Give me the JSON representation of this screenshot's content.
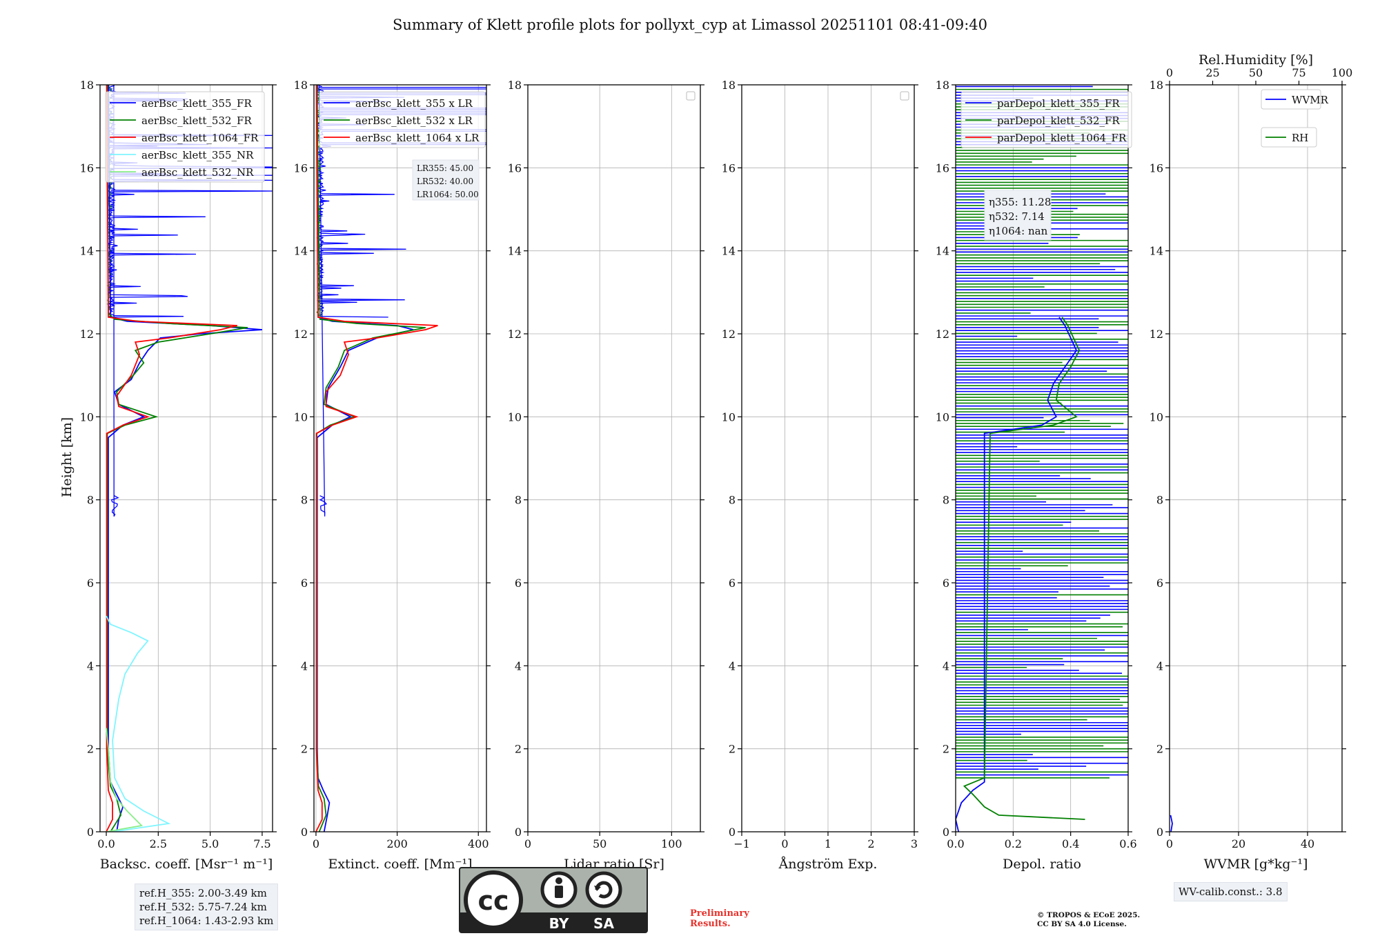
{
  "title": "Summary of Klett profile plots for pollyxt_cyp at Limassol 20251101 08:41-09:40",
  "y_axis_label": "Height [km]",
  "y_ticks": [
    "0",
    "2",
    "4",
    "6",
    "8",
    "10",
    "12",
    "14",
    "16",
    "18"
  ],
  "colors": {
    "blue": "#0000ff",
    "green": "#008000",
    "red": "#ff0000",
    "cyan": "#7ff5ff",
    "lightgreen": "#88ee88",
    "grid": "#b0b0b0"
  },
  "chart_data": [
    {
      "type": "line",
      "panel": "backscatter",
      "xlabel": "Backsc. coeff. [Msr⁻¹ m⁻¹]",
      "xlim": [
        -0.3,
        8.0
      ],
      "ylim": [
        0,
        18
      ],
      "x_ticks": [
        0,
        2.5,
        5.0,
        7.5
      ],
      "x_tick_labels": [
        "0.0",
        "2.5",
        "5.0",
        "7.5"
      ],
      "legend": [
        "aerBsc_klett_355_FR",
        "aerBsc_klett_532_FR",
        "aerBsc_klett_1064_FR",
        "aerBsc_klett_355_NR",
        "aerBsc_klett_532_NR"
      ],
      "series": [
        {
          "name": "aerBsc_klett_355_FR",
          "color": "blue",
          "points": [
            [
              0.5,
              0
            ],
            [
              0.6,
              0.3
            ],
            [
              0.8,
              0.6
            ],
            [
              0.5,
              0.9
            ],
            [
              0.2,
              1.2
            ],
            [
              0.1,
              2
            ],
            [
              0.1,
              6
            ],
            [
              0.1,
              9.5
            ],
            [
              0.8,
              9.8
            ],
            [
              1.8,
              10.0
            ],
            [
              0.6,
              10.3
            ],
            [
              0.4,
              10.6
            ],
            [
              1.2,
              10.9
            ],
            [
              1.6,
              11.3
            ],
            [
              2.0,
              11.6
            ],
            [
              2.6,
              11.9
            ],
            [
              4.5,
              12.0
            ],
            [
              7.5,
              12.1
            ],
            [
              5.0,
              12.2
            ],
            [
              1.0,
              12.3
            ],
            [
              0.2,
              12.4
            ],
            [
              0.1,
              18
            ]
          ]
        },
        {
          "name": "aerBsc_klett_532_FR",
          "color": "green",
          "points": [
            [
              0.2,
              0
            ],
            [
              0.7,
              0.4
            ],
            [
              0.5,
              0.8
            ],
            [
              0.2,
              1.1
            ],
            [
              0.05,
              2
            ],
            [
              0.05,
              9.6
            ],
            [
              0.9,
              9.8
            ],
            [
              2.4,
              10.0
            ],
            [
              0.6,
              10.3
            ],
            [
              0.5,
              10.6
            ],
            [
              1.3,
              11.0
            ],
            [
              1.8,
              11.3
            ],
            [
              1.4,
              11.6
            ],
            [
              2.5,
              11.8
            ],
            [
              5.0,
              12.0
            ],
            [
              6.8,
              12.15
            ],
            [
              3.0,
              12.25
            ],
            [
              0.4,
              12.35
            ],
            [
              0.1,
              12.5
            ],
            [
              0.05,
              18
            ]
          ]
        },
        {
          "name": "aerBsc_klett_1064_FR",
          "color": "red",
          "points": [
            [
              0.0,
              0
            ],
            [
              0.3,
              0.3
            ],
            [
              0.3,
              0.7
            ],
            [
              0.1,
              1.0
            ],
            [
              0.02,
              2
            ],
            [
              0.02,
              9.6
            ],
            [
              0.8,
              9.8
            ],
            [
              2.0,
              10.0
            ],
            [
              0.6,
              10.25
            ],
            [
              0.5,
              10.5
            ],
            [
              1.2,
              11.0
            ],
            [
              1.6,
              11.5
            ],
            [
              1.4,
              11.8
            ],
            [
              3.0,
              11.9
            ],
            [
              5.5,
              12.1
            ],
            [
              6.3,
              12.2
            ],
            [
              1.5,
              12.3
            ],
            [
              0.1,
              12.4
            ],
            [
              0.02,
              18
            ]
          ]
        },
        {
          "name": "aerBsc_klett_355_NR",
          "color": "cyan",
          "points": [
            [
              0.3,
              0
            ],
            [
              3.0,
              0.2
            ],
            [
              1.8,
              0.5
            ],
            [
              0.9,
              0.8
            ],
            [
              0.4,
              1.3
            ],
            [
              0.3,
              2.2
            ],
            [
              0.6,
              3.2
            ],
            [
              0.9,
              3.8
            ],
            [
              1.5,
              4.3
            ],
            [
              2.0,
              4.6
            ],
            [
              1.2,
              4.8
            ],
            [
              0.2,
              5.0
            ],
            [
              0.0,
              5.2
            ]
          ]
        },
        {
          "name": "aerBsc_klett_532_NR",
          "color": "lightgreen",
          "points": [
            [
              0.0,
              0
            ],
            [
              1.7,
              0.15
            ],
            [
              1.0,
              0.5
            ],
            [
              0.5,
              0.8
            ],
            [
              0.2,
              1.2
            ],
            [
              0.1,
              2.0
            ],
            [
              0.0,
              2.5
            ]
          ]
        }
      ]
    },
    {
      "type": "line",
      "panel": "extinction",
      "xlabel": "Extinct. coeff. [Mm⁻¹]",
      "xlim": [
        -5,
        420
      ],
      "ylim": [
        0,
        18
      ],
      "x_ticks": [
        0,
        200,
        400
      ],
      "x_tick_labels": [
        "0",
        "200",
        "400"
      ],
      "legend": [
        "aerBsc_klett_355 x LR",
        "aerBsc_klett_532 x LR",
        "aerBsc_klett_1064 x LR"
      ],
      "lr_text": [
        "LR355: 45.00",
        "LR532: 40.00",
        "LR1064: 50.00"
      ],
      "series": [
        {
          "name": "aerBsc_klett_355 x LR",
          "color": "blue",
          "points": [
            [
              20,
              0
            ],
            [
              28,
              0.4
            ],
            [
              33,
              0.7
            ],
            [
              18,
              1.0
            ],
            [
              5,
              1.3
            ],
            [
              3,
              2
            ],
            [
              3,
              9.5
            ],
            [
              40,
              9.8
            ],
            [
              85,
              10.0
            ],
            [
              25,
              10.3
            ],
            [
              30,
              10.7
            ],
            [
              60,
              11.2
            ],
            [
              80,
              11.6
            ],
            [
              150,
              11.9
            ],
            [
              240,
              12.1
            ],
            [
              200,
              12.2
            ],
            [
              40,
              12.3
            ],
            [
              5,
              12.4
            ],
            [
              3,
              18
            ]
          ]
        },
        {
          "name": "aerBsc_klett_532 x LR",
          "color": "green",
          "points": [
            [
              8,
              0
            ],
            [
              25,
              0.4
            ],
            [
              20,
              0.8
            ],
            [
              6,
              1.1
            ],
            [
              2,
              2
            ],
            [
              2,
              9.6
            ],
            [
              35,
              9.8
            ],
            [
              95,
              10.0
            ],
            [
              20,
              10.3
            ],
            [
              25,
              10.7
            ],
            [
              55,
              11.2
            ],
            [
              70,
              11.6
            ],
            [
              140,
              11.9
            ],
            [
              270,
              12.15
            ],
            [
              100,
              12.25
            ],
            [
              10,
              12.35
            ],
            [
              2,
              18
            ]
          ]
        },
        {
          "name": "aerBsc_klett_1064 x LR",
          "color": "red",
          "points": [
            [
              0,
              0
            ],
            [
              15,
              0.3
            ],
            [
              15,
              0.7
            ],
            [
              5,
              1.0
            ],
            [
              1,
              2
            ],
            [
              1,
              9.6
            ],
            [
              40,
              9.8
            ],
            [
              100,
              10.0
            ],
            [
              25,
              10.25
            ],
            [
              25,
              10.6
            ],
            [
              60,
              11.0
            ],
            [
              80,
              11.5
            ],
            [
              70,
              11.8
            ],
            [
              150,
              11.9
            ],
            [
              270,
              12.1
            ],
            [
              300,
              12.2
            ],
            [
              70,
              12.3
            ],
            [
              5,
              12.4
            ],
            [
              1,
              18
            ]
          ]
        }
      ]
    },
    {
      "type": "line",
      "panel": "lidar_ratio",
      "xlabel": "Lidar ratio [Sr]",
      "xlim": [
        0,
        120
      ],
      "ylim": [
        0,
        18
      ],
      "x_ticks": [
        0,
        50,
        100
      ],
      "x_tick_labels": [
        "0",
        "50",
        "100"
      ],
      "series": []
    },
    {
      "type": "line",
      "panel": "angstrom",
      "xlabel": "Ångström Exp.",
      "xlim": [
        -1,
        3
      ],
      "ylim": [
        0,
        18
      ],
      "x_ticks": [
        -1,
        0,
        1,
        2,
        3
      ],
      "x_tick_labels": [
        "−1",
        "0",
        "1",
        "2",
        "3"
      ],
      "series": []
    },
    {
      "type": "line",
      "panel": "depol",
      "xlabel": "Depol. ratio",
      "xlim": [
        0,
        0.6
      ],
      "ylim": [
        0,
        18
      ],
      "x_ticks": [
        0,
        0.2,
        0.4,
        0.6
      ],
      "x_tick_labels": [
        "0.0",
        "0.2",
        "0.4",
        "0.6"
      ],
      "legend": [
        "parDepol_klett_355_FR",
        "parDepol_klett_532_FR",
        "parDepol_klett_1064_FR"
      ],
      "eta_text": [
        "η355: 11.28",
        "η532: 7.14",
        "η1064: nan"
      ],
      "series": [
        {
          "name": "parDepol_klett_355_FR",
          "color": "blue",
          "points": [
            [
              0.01,
              0
            ],
            [
              0.0,
              0.3
            ],
            [
              0.02,
              0.7
            ],
            [
              0.06,
              1.0
            ],
            [
              0.1,
              1.2
            ],
            [
              0.1,
              9.6
            ],
            [
              0.3,
              9.8
            ],
            [
              0.35,
              10.0
            ],
            [
              0.32,
              10.4
            ],
            [
              0.34,
              10.8
            ],
            [
              0.38,
              11.2
            ],
            [
              0.42,
              11.6
            ],
            [
              0.4,
              11.9
            ],
            [
              0.38,
              12.2
            ],
            [
              0.36,
              12.4
            ]
          ]
        },
        {
          "name": "parDepol_klett_532_FR",
          "color": "green",
          "points": [
            [
              0.45,
              0.3
            ],
            [
              0.15,
              0.4
            ],
            [
              0.1,
              0.6
            ],
            [
              0.06,
              0.9
            ],
            [
              0.03,
              1.1
            ],
            [
              0.1,
              1.3
            ],
            [
              0.12,
              9.6
            ],
            [
              0.34,
              9.8
            ],
            [
              0.42,
              10.0
            ],
            [
              0.35,
              10.4
            ],
            [
              0.36,
              10.8
            ],
            [
              0.4,
              11.2
            ],
            [
              0.43,
              11.6
            ],
            [
              0.41,
              11.9
            ],
            [
              0.39,
              12.2
            ],
            [
              0.37,
              12.4
            ]
          ]
        }
      ]
    },
    {
      "type": "line",
      "panel": "wvmr",
      "xlabel": "WVMR [g*kg⁻¹]",
      "xlim": [
        0,
        50
      ],
      "ylim": [
        0,
        18
      ],
      "x_ticks": [
        0,
        20,
        40
      ],
      "x_tick_labels": [
        "0",
        "20",
        "40"
      ],
      "top_axis": {
        "label": "Rel.Humidity [%]",
        "xlim": [
          0,
          100
        ],
        "ticks": [
          0,
          25,
          50,
          75,
          100
        ],
        "tick_labels": [
          "0",
          "25",
          "50",
          "75",
          "100"
        ]
      },
      "legend": [
        "WVMR",
        "RH"
      ],
      "series": [
        {
          "name": "WVMR",
          "color": "blue",
          "points": [
            [
              0.4,
              0
            ],
            [
              0.8,
              0.2
            ],
            [
              0.3,
              0.4
            ]
          ]
        }
      ]
    }
  ],
  "ref_heights": [
    "ref.H_355: 2.00-3.49 km",
    "ref.H_532: 5.75-7.24 km",
    "ref.H_1064: 1.43-2.93 km"
  ],
  "wv_calib": "WV-calib.const.: 3.8",
  "preliminary": [
    "Preliminary",
    "Results."
  ],
  "copyright": [
    "© TROPOS & ECoE 2025.",
    "CC BY SA 4.0 License."
  ],
  "cc_logo": {
    "by": "BY",
    "sa": "SA",
    "cc": "cc"
  }
}
